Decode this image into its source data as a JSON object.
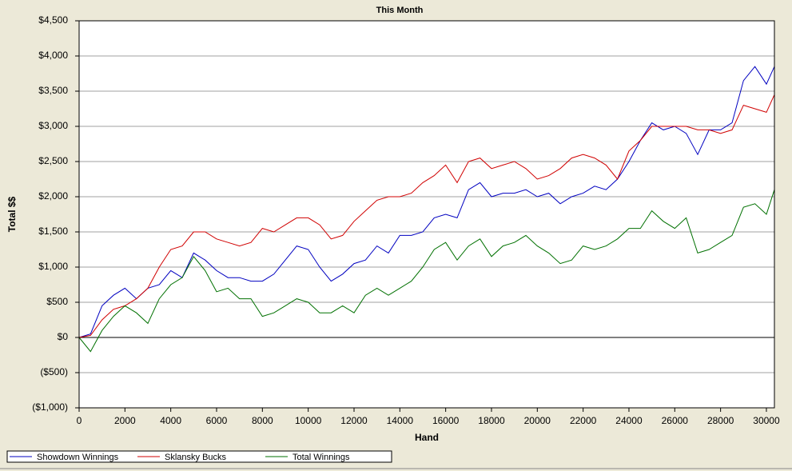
{
  "chart_data": {
    "type": "line",
    "title": "This Month",
    "x_label": "Hand",
    "y_label": "Total $$",
    "x": [
      0,
      500,
      1000,
      1500,
      2000,
      2500,
      3000,
      3500,
      4000,
      4500,
      5000,
      5500,
      6000,
      6500,
      7000,
      7500,
      8000,
      8500,
      9000,
      9500,
      10000,
      10500,
      11000,
      11500,
      12000,
      12500,
      13000,
      13500,
      14000,
      14500,
      15000,
      15500,
      16000,
      16500,
      17000,
      17500,
      18000,
      18500,
      19000,
      19500,
      20000,
      20500,
      21000,
      21500,
      22000,
      22500,
      23000,
      23500,
      24000,
      24500,
      25000,
      25500,
      26000,
      26500,
      27000,
      27500,
      28000,
      28500,
      29000,
      29500,
      30000,
      30350
    ],
    "series": [
      {
        "name": "Showdown Winnings",
        "color": "#0000c0",
        "values": [
          0,
          50,
          450,
          600,
          700,
          550,
          700,
          750,
          950,
          850,
          1200,
          1100,
          950,
          850,
          850,
          800,
          800,
          900,
          1100,
          1300,
          1250,
          1000,
          800,
          900,
          1050,
          1100,
          1300,
          1200,
          1450,
          1450,
          1500,
          1700,
          1750,
          1700,
          2100,
          2200,
          2000,
          2050,
          2050,
          2100,
          2000,
          2050,
          1900,
          2000,
          2050,
          2150,
          2100,
          2250,
          2500,
          2800,
          3050,
          2950,
          3000,
          2900,
          2600,
          2950,
          2950,
          3050,
          3650,
          3850,
          3600,
          3850
        ]
      },
      {
        "name": "Sklansky Bucks",
        "color": "#d00000",
        "values": [
          0,
          30,
          250,
          400,
          450,
          550,
          700,
          1000,
          1250,
          1300,
          1500,
          1500,
          1400,
          1350,
          1300,
          1350,
          1550,
          1500,
          1600,
          1700,
          1700,
          1600,
          1400,
          1450,
          1650,
          1800,
          1950,
          2000,
          2000,
          2050,
          2200,
          2300,
          2450,
          2200,
          2500,
          2550,
          2400,
          2450,
          2500,
          2400,
          2250,
          2300,
          2400,
          2550,
          2600,
          2550,
          2450,
          2250,
          2650,
          2800,
          3000,
          3000,
          3000,
          3000,
          2950,
          2950,
          2900,
          2950,
          3300,
          3250,
          3200,
          3450
        ]
      },
      {
        "name": "Total Winnings",
        "color": "#007000",
        "values": [
          0,
          -200,
          100,
          300,
          450,
          350,
          200,
          550,
          750,
          850,
          1150,
          950,
          650,
          700,
          550,
          550,
          300,
          350,
          450,
          550,
          500,
          350,
          350,
          450,
          350,
          600,
          700,
          600,
          700,
          800,
          1000,
          1250,
          1350,
          1100,
          1300,
          1400,
          1150,
          1300,
          1350,
          1450,
          1300,
          1200,
          1050,
          1100,
          1300,
          1250,
          1300,
          1400,
          1550,
          1550,
          1800,
          1650,
          1550,
          1700,
          1200,
          1250,
          1350,
          1450,
          1850,
          1900,
          1750,
          2100
        ]
      }
    ],
    "xlim": [
      0,
      30350
    ],
    "xticks": [
      0,
      2000,
      4000,
      6000,
      8000,
      10000,
      12000,
      14000,
      16000,
      18000,
      20000,
      22000,
      24000,
      26000,
      28000,
      30000
    ],
    "ylim": [
      -1000,
      4500
    ],
    "yticks": [
      {
        "value": -1000,
        "label": "($1,000)"
      },
      {
        "value": -500,
        "label": "($500)"
      },
      {
        "value": 0,
        "label": "$0"
      },
      {
        "value": 500,
        "label": "$500"
      },
      {
        "value": 1000,
        "label": "$1,000"
      },
      {
        "value": 1500,
        "label": "$1,500"
      },
      {
        "value": 2000,
        "label": "$2,000"
      },
      {
        "value": 2500,
        "label": "$2,500"
      },
      {
        "value": 3000,
        "label": "$3,000"
      },
      {
        "value": 3500,
        "label": "$3,500"
      },
      {
        "value": 4000,
        "label": "$4,000"
      },
      {
        "value": 4500,
        "label": "$4,500"
      }
    ],
    "grid": true,
    "legend": "bottom"
  }
}
